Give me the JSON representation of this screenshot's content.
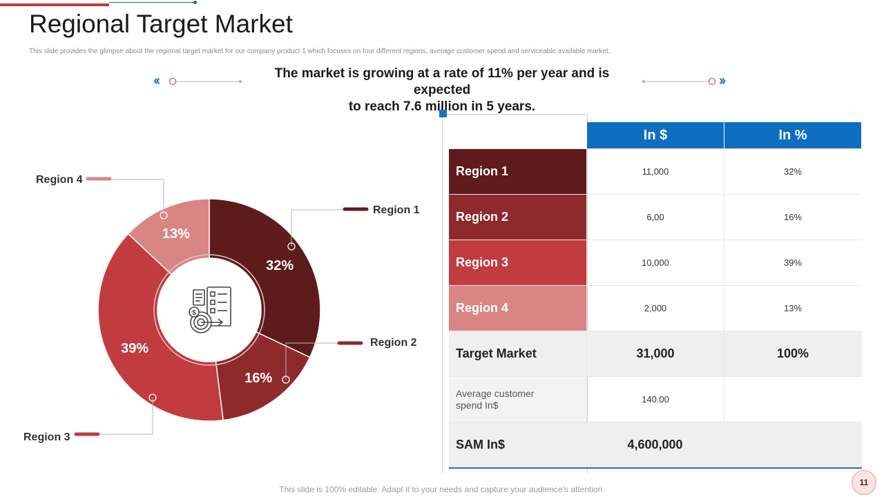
{
  "slide": {
    "title": "Regional Target Market",
    "subtitle": "This slide provides the glimpse about the regional target market  for our company product 1 which focuses on four different regions, average customer spend and serviceable available market.",
    "headline_line1": "The market is growing at a rate of 11% per year and is expected",
    "headline_line2": "to reach 7.6 million in 5 years.",
    "footer": "This slide is 100% editable. Adapt it to your needs and capture your audience’s attention.",
    "page_number": "11"
  },
  "colors": {
    "region1": "#5e1b1c",
    "region2": "#8f2a2c",
    "region3": "#c13b3f",
    "region4": "#d98585",
    "header_blue": "#0e6fc1"
  },
  "chart_data": {
    "type": "pie",
    "categories": [
      "Region 1",
      "Region 2",
      "Region 3",
      "Region 4"
    ],
    "values": [
      32,
      16,
      39,
      13
    ],
    "labels": [
      "32%",
      "16%",
      "39%",
      "13%"
    ],
    "center_icon": "target-dollar-checklist-icon"
  },
  "table": {
    "headers": [
      "",
      "In $",
      "In %"
    ],
    "regions": [
      {
        "name": "Region 1",
        "dollars": "11,000",
        "percent": "32%"
      },
      {
        "name": "Region 2",
        "dollars": "6,00",
        "percent": "16%"
      },
      {
        "name": "Region 3",
        "dollars": "10,000",
        "percent": "39%"
      },
      {
        "name": "Region 4",
        "dollars": "2,000",
        "percent": "13%"
      }
    ],
    "target_market": {
      "label": "Target Market",
      "dollars": "31,000",
      "percent": "100%"
    },
    "avg_spend": {
      "label": "Average customer spend In$",
      "dollars": "140.00"
    },
    "sam": {
      "label": "SAM In$",
      "dollars": "4,600,000"
    }
  },
  "icons": {
    "left_chevrons": "«",
    "right_chevrons": "»"
  }
}
